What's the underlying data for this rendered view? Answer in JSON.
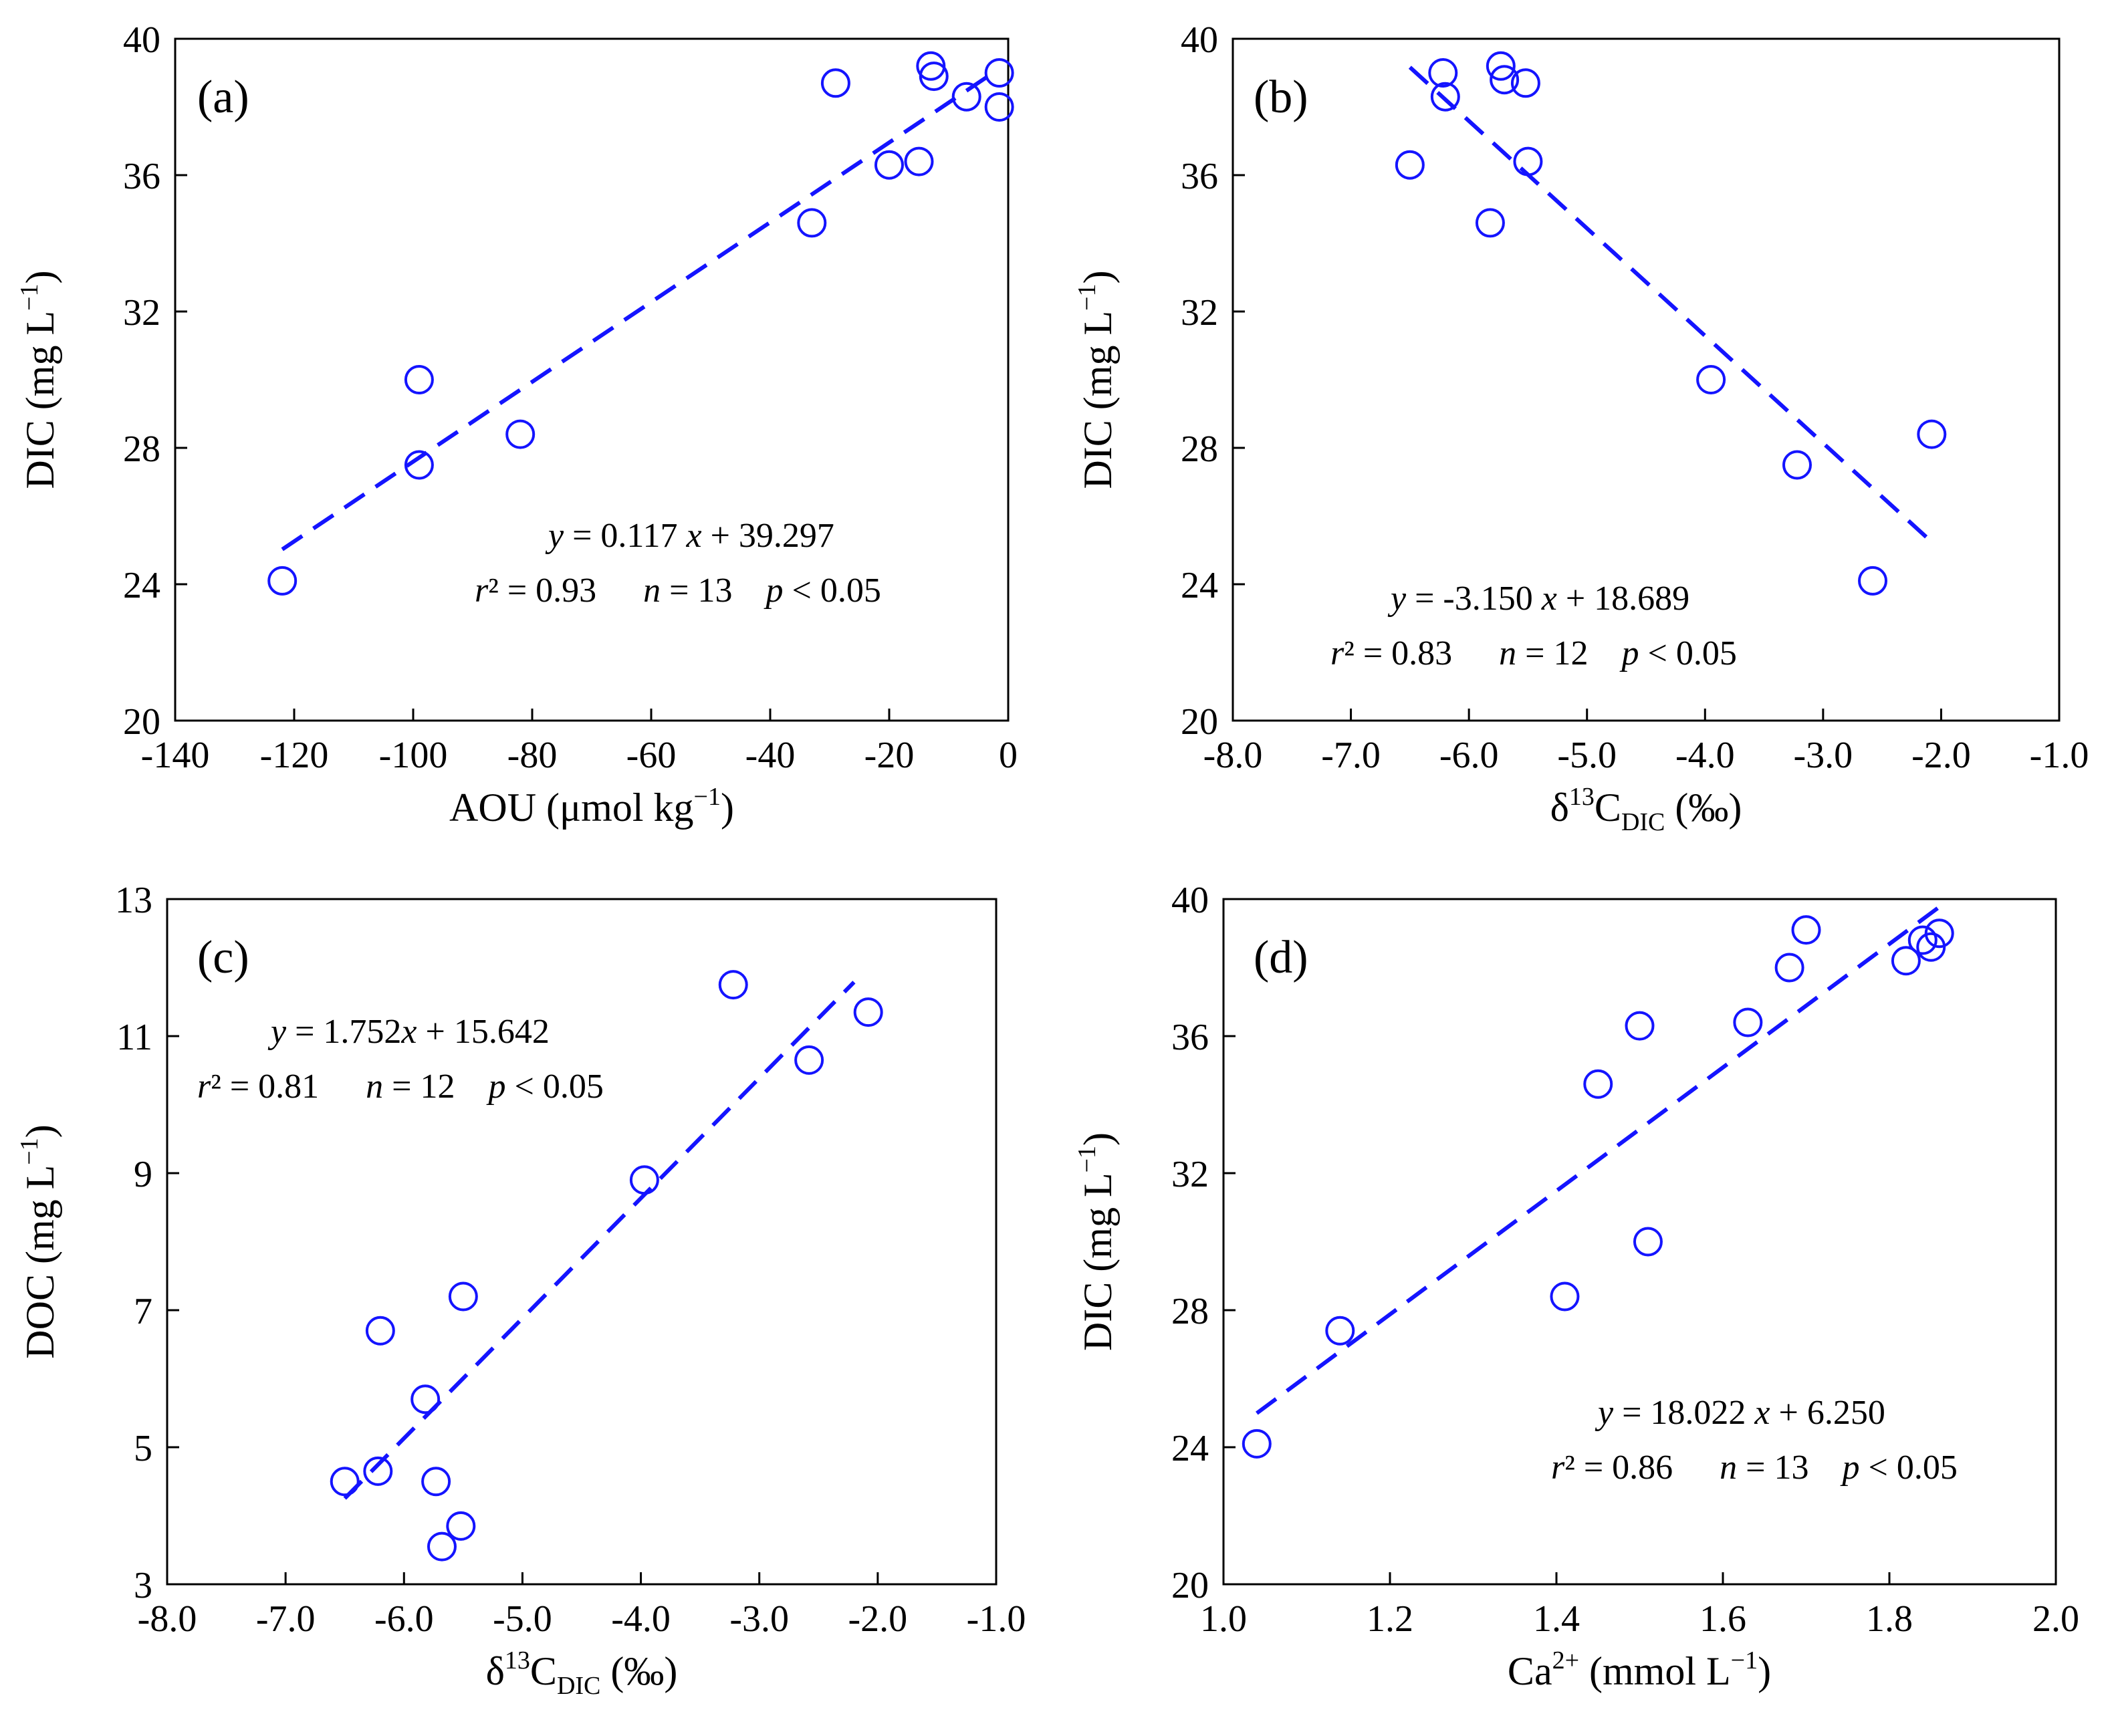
{
  "chart_data": [
    {
      "type": "scatter",
      "panel": "(a)",
      "xlabel": "AOU (μmol kg⁻¹)",
      "xlabel_parts": {
        "main": "AOU (μmol kg",
        "sup": "−1",
        "end": ")"
      },
      "ylabel": "DIC (mg L⁻¹)",
      "ylabel_parts": {
        "main": "DIC (mg L",
        "sup": "−1",
        "end": ")"
      },
      "xlim": [
        -140,
        0
      ],
      "ylim": [
        20,
        40
      ],
      "xticks": [
        -140,
        -120,
        -100,
        -80,
        -60,
        -40,
        -20,
        0
      ],
      "xtick_labels": [
        "-140",
        "-120",
        "-100",
        "-80",
        "-60",
        "-40",
        "-20",
        "0"
      ],
      "yticks": [
        20,
        24,
        28,
        32,
        36,
        40
      ],
      "ytick_labels": [
        "20",
        "24",
        "28",
        "32",
        "36",
        "40"
      ],
      "points": [
        {
          "x": -122,
          "y": 24.1
        },
        {
          "x": -99,
          "y": 30.0
        },
        {
          "x": -99,
          "y": 27.5
        },
        {
          "x": -82,
          "y": 28.4
        },
        {
          "x": -33,
          "y": 34.6
        },
        {
          "x": -29,
          "y": 38.7
        },
        {
          "x": -20,
          "y": 36.3
        },
        {
          "x": -15,
          "y": 36.4
        },
        {
          "x": -13,
          "y": 39.2
        },
        {
          "x": -12.5,
          "y": 38.9
        },
        {
          "x": -7,
          "y": 38.3
        },
        {
          "x": -1.5,
          "y": 39.0
        },
        {
          "x": -1.5,
          "y": 38.0
        }
      ],
      "fit": {
        "slope": 0.117,
        "intercept": 39.297,
        "x_range": [
          -122,
          -2
        ]
      },
      "equation_line1": {
        "y_var": "y",
        "rhs1": " = 0.117 ",
        "x_var": "x",
        "rhs2": " + 39.297"
      },
      "equation_line2": {
        "r_var": "r",
        "r_val": "² = 0.93",
        "n_var": "n",
        "n_val": " = 13",
        "p_var": "p",
        "p_val": " < 0.05"
      }
    },
    {
      "type": "scatter",
      "panel": "(b)",
      "xlabel": "δ¹³C_DIC (‰)",
      "xlabel_parts": {
        "delta": "δ",
        "sup": "13",
        "main": "C",
        "sub": "DIC",
        "end": " (‰)"
      },
      "ylabel": "DIC (mg L⁻¹)",
      "ylabel_parts": {
        "main": "DIC (mg L",
        "sup": "−1",
        "end": ")"
      },
      "xlim": [
        -8,
        -1
      ],
      "ylim": [
        20,
        40
      ],
      "xticks": [
        -8,
        -7,
        -6,
        -5,
        -4,
        -3,
        -2,
        -1
      ],
      "xtick_labels": [
        "-8.0",
        "-7.0",
        "-6.0",
        "-5.0",
        "-4.0",
        "-3.0",
        "-2.0",
        "-1.0"
      ],
      "yticks": [
        20,
        24,
        28,
        32,
        36,
        40
      ],
      "ytick_labels": [
        "20",
        "24",
        "28",
        "32",
        "36",
        "40"
      ],
      "points": [
        {
          "x": -6.5,
          "y": 36.3
        },
        {
          "x": -6.22,
          "y": 39.0
        },
        {
          "x": -6.2,
          "y": 38.3
        },
        {
          "x": -5.73,
          "y": 39.2
        },
        {
          "x": -5.7,
          "y": 38.8
        },
        {
          "x": -5.52,
          "y": 38.7
        },
        {
          "x": -5.5,
          "y": 36.4
        },
        {
          "x": -5.82,
          "y": 34.6
        },
        {
          "x": -3.95,
          "y": 30.0
        },
        {
          "x": -3.22,
          "y": 27.5
        },
        {
          "x": -2.08,
          "y": 28.4
        },
        {
          "x": -2.58,
          "y": 24.1
        }
      ],
      "fit": {
        "slope": -3.15,
        "intercept": 18.689,
        "x_range": [
          -6.5,
          -2.1
        ]
      },
      "equation_line1": {
        "y_var": "y",
        "rhs1": " = -3.150 ",
        "x_var": "x",
        "rhs2": " + 18.689"
      },
      "equation_line2": {
        "r_var": "r",
        "r_val": "² = 0.83",
        "n_var": "n",
        "n_val": " = 12",
        "p_var": "p",
        "p_val": " < 0.05"
      }
    },
    {
      "type": "scatter",
      "panel": "(c)",
      "xlabel": "δ¹³C_DIC (‰)",
      "xlabel_parts": {
        "delta": "δ",
        "sup": "13",
        "main": "C",
        "sub": "DIC",
        "end": " (‰)"
      },
      "ylabel": "DOC (mg L⁻¹)",
      "ylabel_parts": {
        "main": "DOC (mg L",
        "sup": "−1",
        "end": ")"
      },
      "xlim": [
        -8,
        -1
      ],
      "ylim": [
        3,
        13
      ],
      "xticks": [
        -8,
        -7,
        -6,
        -5,
        -4,
        -3,
        -2,
        -1
      ],
      "xtick_labels": [
        "-8.0",
        "-7.0",
        "-6.0",
        "-5.0",
        "-4.0",
        "-3.0",
        "-2.0",
        "-1.0"
      ],
      "yticks": [
        3,
        5,
        7,
        9,
        11,
        13
      ],
      "ytick_labels": [
        "3",
        "5",
        "7",
        "9",
        "11",
        "13"
      ],
      "points": [
        {
          "x": -6.5,
          "y": 4.5
        },
        {
          "x": -6.22,
          "y": 4.65
        },
        {
          "x": -6.2,
          "y": 6.7
        },
        {
          "x": -5.82,
          "y": 5.7
        },
        {
          "x": -5.73,
          "y": 4.5
        },
        {
          "x": -5.68,
          "y": 3.55
        },
        {
          "x": -5.52,
          "y": 3.85
        },
        {
          "x": -5.5,
          "y": 7.2
        },
        {
          "x": -3.97,
          "y": 8.9
        },
        {
          "x": -3.22,
          "y": 11.75
        },
        {
          "x": -2.58,
          "y": 10.65
        },
        {
          "x": -2.08,
          "y": 11.35
        }
      ],
      "fit": {
        "slope": 1.752,
        "intercept": 15.642,
        "x_range": [
          -6.5,
          -2.2
        ]
      },
      "equation_line1": {
        "y_var": "y",
        "rhs1": " = 1.752",
        "x_var": "x",
        "rhs2": " + 15.642"
      },
      "equation_line2": {
        "r_var": "r",
        "r_val": "² = 0.81",
        "n_var": "n",
        "n_val": " = 12",
        "p_var": "p",
        "p_val": " < 0.05"
      }
    },
    {
      "type": "scatter",
      "panel": "(d)",
      "xlabel": "Ca²⁺ (mmol L⁻¹)",
      "xlabel_parts": {
        "main": "Ca",
        "sup": "2+",
        "mid": " (mmol L",
        "sup2": "−1",
        "end": ")"
      },
      "ylabel": "DIC (mg L⁻¹)",
      "ylabel_parts": {
        "main": "DIC (mg L",
        "sup": "−1",
        "end": ")"
      },
      "xlim": [
        1.0,
        2.0
      ],
      "ylim": [
        20,
        40
      ],
      "xticks": [
        1.0,
        1.2,
        1.4,
        1.6,
        1.8,
        2.0
      ],
      "xtick_labels": [
        "1.0",
        "1.2",
        "1.4",
        "1.6",
        "1.8",
        "2.0"
      ],
      "yticks": [
        20,
        24,
        28,
        32,
        36,
        40
      ],
      "ytick_labels": [
        "20",
        "24",
        "28",
        "32",
        "36",
        "40"
      ],
      "points": [
        {
          "x": 1.04,
          "y": 24.1
        },
        {
          "x": 1.14,
          "y": 27.4
        },
        {
          "x": 1.41,
          "y": 28.4
        },
        {
          "x": 1.45,
          "y": 34.6
        },
        {
          "x": 1.5,
          "y": 36.3
        },
        {
          "x": 1.51,
          "y": 30.0
        },
        {
          "x": 1.63,
          "y": 36.4
        },
        {
          "x": 1.68,
          "y": 38.0
        },
        {
          "x": 1.7,
          "y": 39.1
        },
        {
          "x": 1.82,
          "y": 38.2
        },
        {
          "x": 1.84,
          "y": 38.8
        },
        {
          "x": 1.85,
          "y": 38.6
        },
        {
          "x": 1.86,
          "y": 39.0
        }
      ],
      "fit": {
        "slope": 18.022,
        "intercept": 6.25,
        "x_range": [
          1.04,
          1.86
        ]
      },
      "equation_line1": {
        "y_var": "y",
        "rhs1": " = 18.022 ",
        "x_var": "x",
        "rhs2": " + 6.250"
      },
      "equation_line2": {
        "r_var": "r",
        "r_val": "² = 0.86",
        "n_var": "n",
        "n_val": " = 13",
        "p_var": "p",
        "p_val": " < 0.05"
      }
    }
  ]
}
